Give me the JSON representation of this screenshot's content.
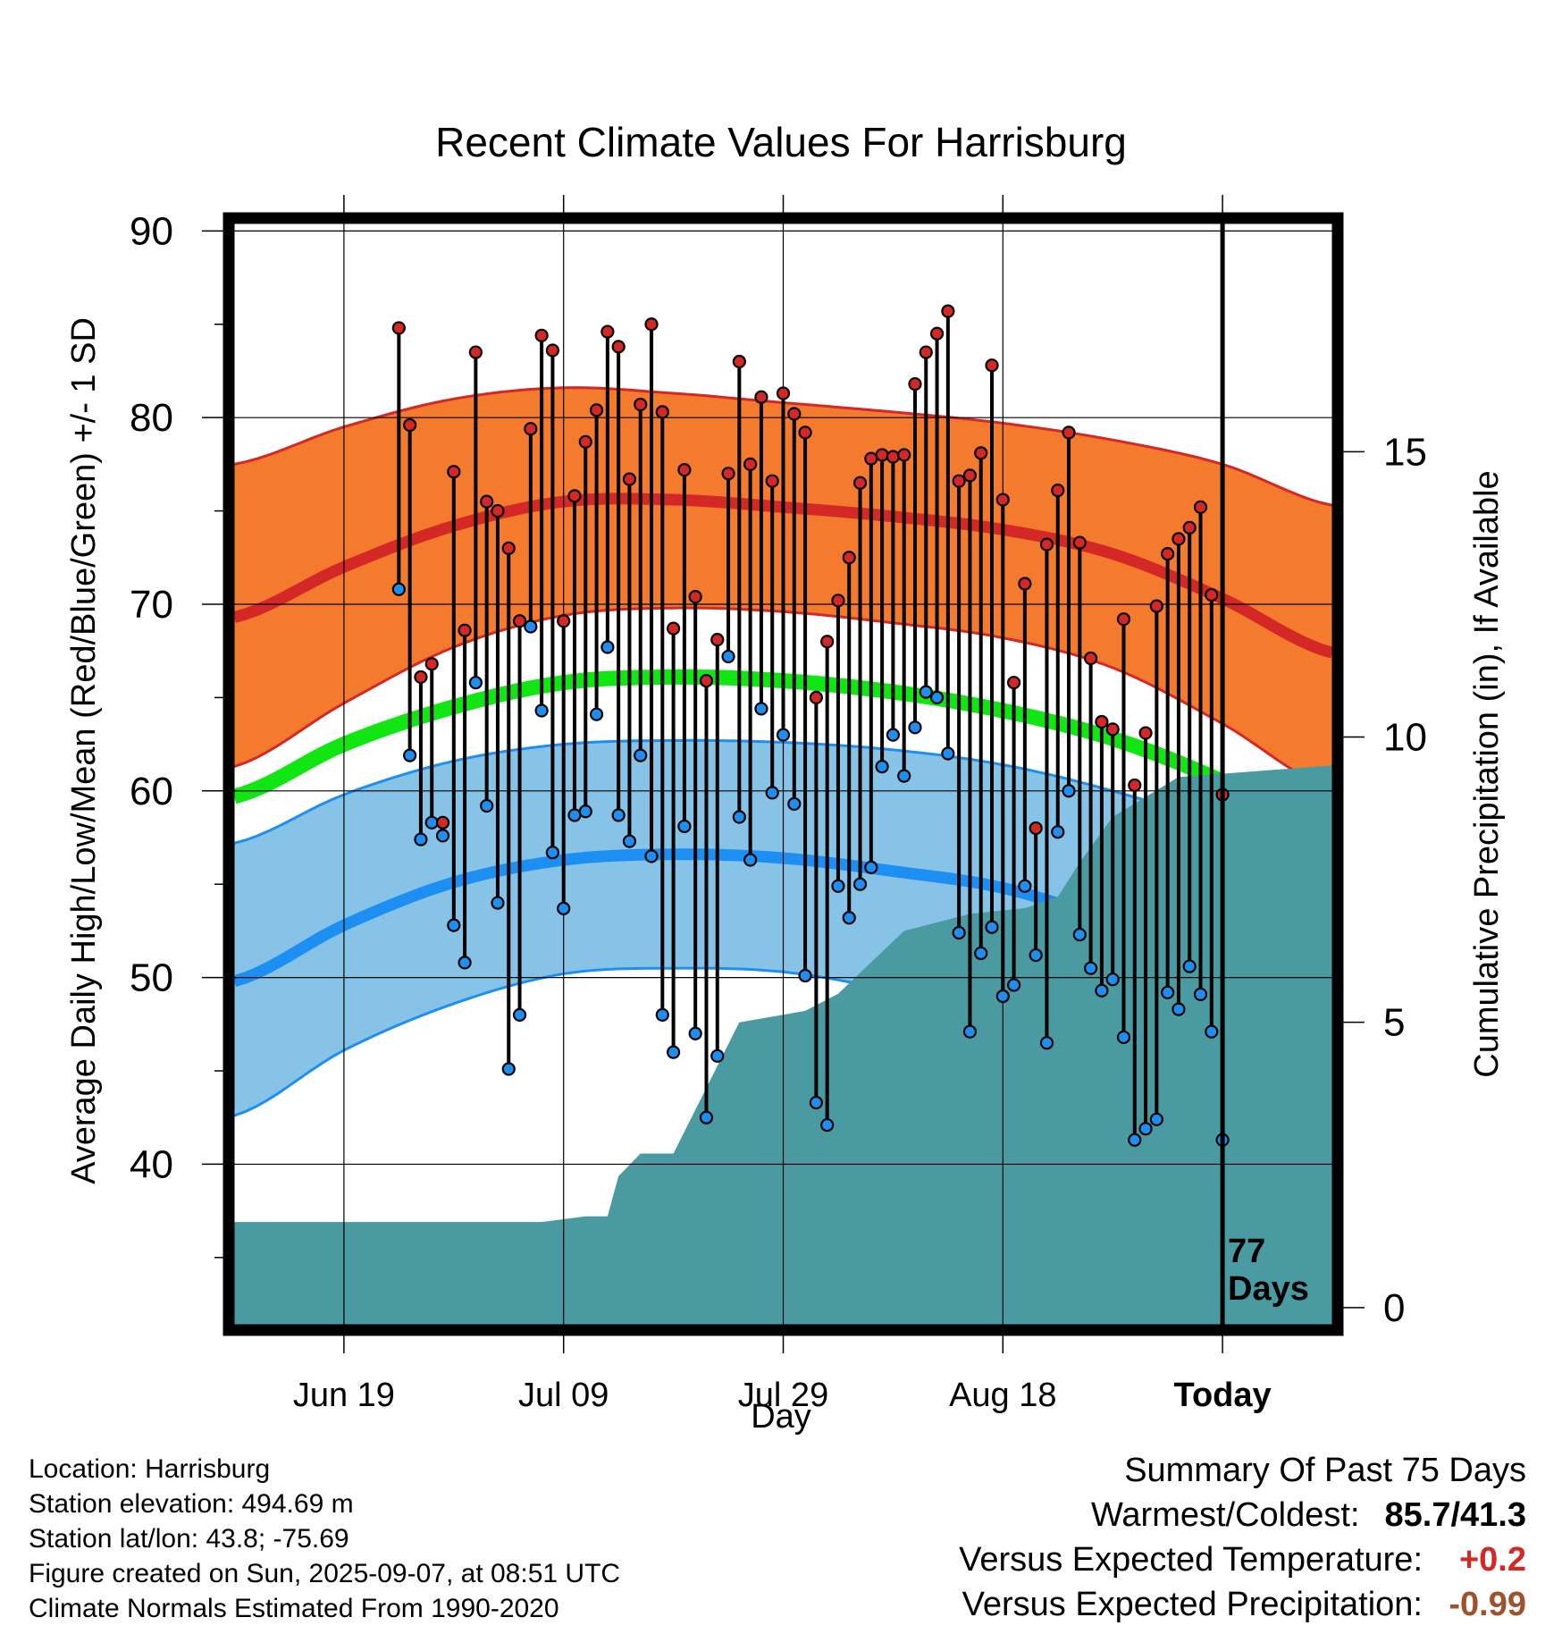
{
  "chart_data": {
    "type": "line",
    "title": "Recent Climate Values For Harrisburg",
    "xlabel": "Day",
    "ylabel": "Average Daily High/Low/Mean (Red/Blue/Green) +/- 1 SD",
    "y2label": "Cumulative Precipitation (in), If Available",
    "x_tick_labels": [
      "Jun 19",
      "Jul 09",
      "Jul 29",
      "Aug 18",
      "Today"
    ],
    "x_tick_days": [
      -78,
      -58,
      -38,
      -18,
      2
    ],
    "xlim_days": [
      -88,
      12
    ],
    "ylim": [
      31.4,
      90.4
    ],
    "y_ticks": [
      40,
      50,
      60,
      70,
      80,
      90
    ],
    "y2lim": [
      -0.3,
      19.0
    ],
    "y2_ticks": [
      0,
      5,
      10,
      15
    ],
    "grid": true,
    "today_marker": {
      "day": 2,
      "label_line1": "77",
      "label_line2": "Days"
    },
    "colors": {
      "high_band": "#f47b2e",
      "high_line": "#d42827",
      "low_band": "#86c3e6",
      "low_line": "#1e8ff2",
      "mean_line": "#12e612",
      "precip": "#4a9aa2",
      "high_point": "#d42827",
      "low_point": "#1e8ff2"
    },
    "normals": {
      "days": [
        -88,
        -78,
        -68,
        -58,
        -48,
        -38,
        -28,
        -18,
        -8,
        2,
        12
      ],
      "high": [
        69.3,
        72.0,
        74.2,
        75.5,
        75.6,
        75.2,
        74.7,
        74.0,
        72.7,
        70.3,
        67.4
      ],
      "high_upper": [
        77.5,
        79.5,
        81.0,
        81.6,
        81.3,
        80.8,
        80.3,
        79.7,
        78.8,
        77.5,
        75.3
      ],
      "high_lower": [
        61.3,
        64.7,
        67.7,
        69.4,
        69.8,
        69.6,
        69.0,
        68.2,
        66.6,
        63.6,
        60.1
      ],
      "low": [
        49.8,
        52.8,
        55.1,
        56.3,
        56.6,
        56.4,
        55.7,
        54.8,
        53.0,
        50.9,
        47.6
      ],
      "low_upper": [
        57.2,
        59.8,
        61.6,
        62.5,
        62.7,
        62.6,
        62.2,
        61.4,
        60.0,
        58.1,
        55.3
      ],
      "low_lower": [
        42.6,
        46.1,
        48.6,
        50.2,
        50.5,
        50.3,
        49.3,
        48.0,
        45.6,
        41.9,
        36.8
      ],
      "mean": [
        59.7,
        62.5,
        64.5,
        65.8,
        66.1,
        65.9,
        65.3,
        64.3,
        62.8,
        60.5,
        57.4
      ]
    },
    "observations": {
      "start_day": -73,
      "high": [
        84.8,
        79.6,
        66.1,
        66.8,
        58.3,
        77.1,
        68.6,
        83.5,
        75.5,
        75.0,
        73.0,
        69.1,
        79.4,
        84.4,
        83.6,
        69.1,
        75.8,
        78.7,
        80.4,
        84.6,
        83.8,
        76.7,
        80.7,
        85.0,
        80.3,
        68.7,
        77.2,
        70.4,
        65.9,
        68.1,
        77.0,
        83.0,
        77.5,
        81.1,
        76.6,
        81.3,
        80.2,
        79.2,
        65.0,
        68.0,
        70.2,
        72.5,
        76.5,
        77.8,
        78.0,
        77.9,
        78.0,
        81.8,
        83.5,
        84.5,
        85.7,
        76.6,
        76.9,
        78.1,
        82.8,
        75.6,
        65.8,
        71.1,
        58.0,
        73.2,
        76.1,
        79.2,
        73.3,
        67.1,
        63.7,
        63.3,
        69.2,
        60.3,
        63.1,
        69.9,
        72.7,
        73.5,
        74.1,
        75.2,
        70.5,
        59.8
      ],
      "low": [
        70.8,
        61.9,
        57.4,
        58.3,
        57.6,
        52.8,
        50.8,
        65.8,
        59.2,
        54.0,
        45.1,
        48.0,
        68.8,
        64.3,
        56.7,
        53.7,
        58.7,
        58.9,
        64.1,
        67.7,
        58.7,
        57.3,
        61.9,
        56.5,
        48.0,
        46.0,
        58.1,
        47.0,
        42.5,
        45.8,
        67.2,
        58.6,
        56.3,
        64.4,
        59.9,
        63.0,
        59.3,
        50.1,
        43.3,
        42.1,
        54.9,
        53.2,
        55.0,
        55.9,
        61.3,
        63.0,
        60.8,
        63.4,
        65.3,
        65.0,
        62.0,
        52.4,
        47.1,
        51.3,
        52.7,
        49.0,
        49.6,
        54.9,
        51.2,
        46.5,
        57.8,
        60.0,
        52.3,
        50.5,
        49.3,
        49.9,
        46.8,
        41.3,
        41.9,
        42.4,
        49.2,
        48.3,
        50.6,
        49.1,
        47.1,
        41.3
      ]
    },
    "precipitation": {
      "days": [
        -88,
        -60,
        -56,
        -54,
        -53,
        -52,
        -51,
        -50,
        -48,
        -42,
        -36,
        -33,
        -27,
        -21,
        -16,
        -13,
        -11,
        -8,
        -2,
        12
      ],
      "cumulative": [
        1.5,
        1.5,
        1.6,
        1.6,
        2.3,
        2.5,
        2.7,
        2.7,
        2.7,
        5.0,
        5.2,
        5.5,
        6.6,
        6.9,
        7.0,
        7.2,
        7.8,
        8.6,
        9.3,
        9.5
      ]
    }
  },
  "info": {
    "location": "Location: Harrisburg",
    "elevation": "Station elevation: 494.69 m",
    "latlon": "Station lat/lon: 43.8; -75.69",
    "created": "Figure created on Sun, 2025-09-07, at 08:51 UTC",
    "normals": "Climate Normals Estimated From 1990-2020"
  },
  "summary": {
    "title": "Summary Of Past 75 Days",
    "warm_cold_label": "Warmest/Coldest:",
    "warm_cold_value": "85.7/41.3",
    "temp_label": "Versus Expected Temperature:",
    "temp_value": "+0.2",
    "temp_color": "#d42827",
    "precip_label": "Versus Expected Precipitation:",
    "precip_value": "-0.99",
    "precip_color": "#a0522d"
  }
}
